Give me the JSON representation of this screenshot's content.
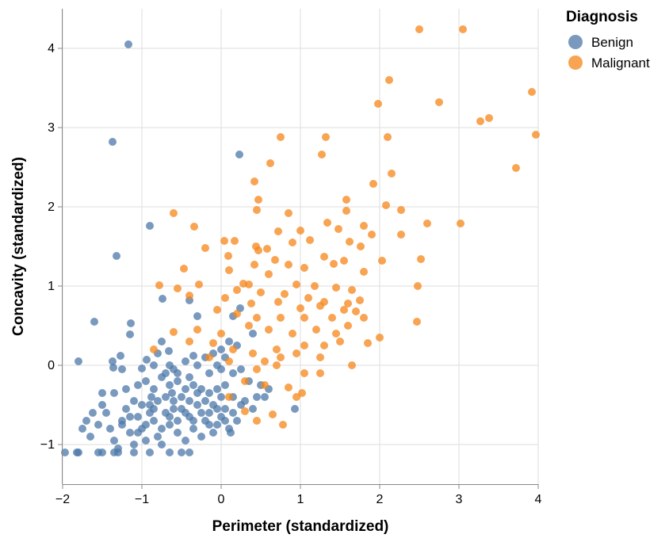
{
  "chart_data": {
    "type": "scatter",
    "xlabel": "Perimeter (standardized)",
    "ylabel": "Concavity (standardized)",
    "xlim": [
      -2,
      4
    ],
    "ylim": [
      -1.5,
      4.5
    ],
    "xticks": [
      -2,
      -1,
      0,
      1,
      2,
      3,
      4
    ],
    "yticks": [
      -1,
      0,
      1,
      2,
      3,
      4
    ],
    "grid": true,
    "legend": {
      "title": "Diagnosis",
      "placement": "top-right"
    },
    "series": [
      {
        "name": "Benign",
        "color": "#4c78a8",
        "points": [
          [
            -1.17,
            4.05
          ],
          [
            -1.37,
            2.82
          ],
          [
            0.23,
            2.66
          ],
          [
            -0.9,
            1.76
          ],
          [
            -1.32,
            1.38
          ],
          [
            -0.74,
            0.84
          ],
          [
            -0.4,
            0.82
          ],
          [
            -1.6,
            0.55
          ],
          [
            -1.14,
            0.53
          ],
          [
            -1.15,
            0.39
          ],
          [
            -0.3,
            0.62
          ],
          [
            0.15,
            0.62
          ],
          [
            0.24,
            0.72
          ],
          [
            -1.8,
            0.05
          ],
          [
            -1.37,
            0.05
          ],
          [
            -1.27,
            0.12
          ],
          [
            -1.25,
            -0.05
          ],
          [
            -1.36,
            -0.03
          ],
          [
            -0.75,
            0.3
          ],
          [
            -0.66,
            0.18
          ],
          [
            -0.8,
            0.15
          ],
          [
            -0.94,
            0.07
          ],
          [
            -0.65,
            0.0
          ],
          [
            -0.6,
            -0.05
          ],
          [
            -0.45,
            0.05
          ],
          [
            -0.35,
            0.12
          ],
          [
            -0.2,
            0.1
          ],
          [
            -0.1,
            0.15
          ],
          [
            0.0,
            0.2
          ],
          [
            0.1,
            0.3
          ],
          [
            0.2,
            0.25
          ],
          [
            0.4,
            0.4
          ],
          [
            -1.0,
            -0.04
          ],
          [
            -0.85,
            0.0
          ],
          [
            -0.7,
            -0.1
          ],
          [
            -0.55,
            -0.1
          ],
          [
            -0.4,
            -0.15
          ],
          [
            -0.3,
            0.0
          ],
          [
            -0.15,
            -0.1
          ],
          [
            0.0,
            -0.05
          ],
          [
            0.15,
            -0.1
          ],
          [
            0.25,
            -0.05
          ],
          [
            0.05,
            0.1
          ],
          [
            -0.05,
            0.0
          ],
          [
            0.35,
            -0.2
          ],
          [
            0.5,
            -0.25
          ],
          [
            0.6,
            -0.3
          ],
          [
            0.45,
            -0.4
          ],
          [
            0.55,
            -0.4
          ],
          [
            0.93,
            -0.55
          ],
          [
            -1.8,
            -1.1
          ],
          [
            -1.82,
            -1.1
          ],
          [
            -1.97,
            -1.1
          ],
          [
            -1.55,
            -1.1
          ],
          [
            -1.5,
            -1.1
          ],
          [
            -1.35,
            -1.1
          ],
          [
            -1.3,
            -1.1
          ],
          [
            -1.1,
            -1.1
          ],
          [
            -0.9,
            -1.1
          ],
          [
            -0.65,
            -1.1
          ],
          [
            -0.5,
            -1.1
          ],
          [
            -0.4,
            -1.1
          ],
          [
            -1.65,
            -0.9
          ],
          [
            -1.55,
            -0.75
          ],
          [
            -1.5,
            -0.5
          ],
          [
            -1.45,
            -0.6
          ],
          [
            -1.4,
            -0.8
          ],
          [
            -1.35,
            -0.95
          ],
          [
            -1.3,
            -1.05
          ],
          [
            -1.25,
            -0.7
          ],
          [
            -1.2,
            -0.55
          ],
          [
            -1.15,
            -0.85
          ],
          [
            -1.1,
            -1.0
          ],
          [
            -1.05,
            -0.65
          ],
          [
            -1.0,
            -0.8
          ],
          [
            -0.95,
            -0.95
          ],
          [
            -0.9,
            -0.5
          ],
          [
            -0.85,
            -0.7
          ],
          [
            -0.8,
            -0.9
          ],
          [
            -0.75,
            -1.0
          ],
          [
            -0.7,
            -0.6
          ],
          [
            -0.65,
            -0.75
          ],
          [
            -0.6,
            -0.45
          ],
          [
            -0.55,
            -0.85
          ],
          [
            -0.5,
            -0.55
          ],
          [
            -0.45,
            -0.95
          ],
          [
            -0.4,
            -0.65
          ],
          [
            -0.35,
            -0.8
          ],
          [
            -0.3,
            -0.5
          ],
          [
            -0.25,
            -0.9
          ],
          [
            -0.2,
            -0.7
          ],
          [
            -0.15,
            -0.6
          ],
          [
            -0.1,
            -0.85
          ],
          [
            -0.05,
            -0.75
          ],
          [
            0.0,
            -0.65
          ],
          [
            0.05,
            -0.55
          ],
          [
            0.1,
            -0.8
          ],
          [
            0.15,
            -0.6
          ],
          [
            0.2,
            -0.7
          ],
          [
            0.25,
            -0.5
          ],
          [
            -1.5,
            -0.35
          ],
          [
            -1.35,
            -0.35
          ],
          [
            -1.2,
            -0.3
          ],
          [
            -1.05,
            -0.25
          ],
          [
            -0.95,
            -0.2
          ],
          [
            -0.85,
            -0.3
          ],
          [
            -0.75,
            -0.15
          ],
          [
            -0.65,
            -0.25
          ],
          [
            -0.55,
            -0.2
          ],
          [
            -0.45,
            -0.3
          ],
          [
            -0.35,
            -0.25
          ],
          [
            -0.25,
            -0.3
          ],
          [
            -0.15,
            -0.35
          ],
          [
            -0.05,
            -0.3
          ],
          [
            0.05,
            -0.25
          ],
          [
            0.15,
            -0.4
          ],
          [
            0.3,
            -0.45
          ],
          [
            0.4,
            -0.55
          ],
          [
            -1.1,
            -0.45
          ],
          [
            -1.0,
            -0.5
          ],
          [
            -0.9,
            -0.6
          ],
          [
            -0.8,
            -0.45
          ],
          [
            -0.7,
            -0.4
          ],
          [
            -0.6,
            -0.55
          ],
          [
            -0.5,
            -0.4
          ],
          [
            -0.4,
            -0.45
          ],
          [
            -0.3,
            -0.35
          ],
          [
            -0.2,
            -0.45
          ],
          [
            -0.1,
            -0.5
          ],
          [
            0.0,
            -0.4
          ],
          [
            -1.25,
            -0.75
          ],
          [
            -1.15,
            -0.65
          ],
          [
            -1.05,
            -0.85
          ],
          [
            -0.95,
            -0.75
          ],
          [
            -0.85,
            -0.55
          ],
          [
            -0.75,
            -0.8
          ],
          [
            -0.65,
            -0.65
          ],
          [
            -0.55,
            -0.7
          ],
          [
            -0.45,
            -0.6
          ],
          [
            -0.35,
            -0.7
          ],
          [
            -0.25,
            -0.6
          ],
          [
            -0.15,
            -0.75
          ],
          [
            -0.05,
            -0.55
          ],
          [
            0.05,
            -0.7
          ],
          [
            0.12,
            -0.85
          ],
          [
            -1.7,
            -0.7
          ],
          [
            -1.62,
            -0.6
          ],
          [
            -1.75,
            -0.8
          ],
          [
            -0.88,
            -0.4
          ],
          [
            -0.62,
            -0.35
          ]
        ]
      },
      {
        "name": "Malignant",
        "color": "#f58518",
        "points": [
          [
            2.5,
            4.24
          ],
          [
            3.05,
            4.24
          ],
          [
            2.12,
            3.6
          ],
          [
            1.98,
            3.3
          ],
          [
            2.75,
            3.32
          ],
          [
            3.92,
            3.45
          ],
          [
            3.38,
            3.12
          ],
          [
            3.27,
            3.08
          ],
          [
            3.97,
            2.91
          ],
          [
            3.72,
            2.49
          ],
          [
            0.75,
            2.88
          ],
          [
            1.32,
            2.88
          ],
          [
            2.1,
            2.88
          ],
          [
            1.27,
            2.66
          ],
          [
            0.62,
            2.55
          ],
          [
            2.15,
            2.42
          ],
          [
            0.42,
            2.32
          ],
          [
            1.92,
            2.29
          ],
          [
            1.58,
            2.09
          ],
          [
            0.47,
            2.09
          ],
          [
            1.58,
            1.95
          ],
          [
            0.45,
            1.96
          ],
          [
            2.08,
            2.02
          ],
          [
            2.27,
            1.96
          ],
          [
            -0.6,
            1.92
          ],
          [
            0.85,
            1.92
          ],
          [
            1.34,
            1.8
          ],
          [
            1.8,
            1.76
          ],
          [
            2.6,
            1.79
          ],
          [
            3.02,
            1.79
          ],
          [
            -0.34,
            1.75
          ],
          [
            1.0,
            1.7
          ],
          [
            1.48,
            1.72
          ],
          [
            1.9,
            1.65
          ],
          [
            0.04,
            1.57
          ],
          [
            0.17,
            1.57
          ],
          [
            0.72,
            1.69
          ],
          [
            2.27,
            1.65
          ],
          [
            0.44,
            1.5
          ],
          [
            0.58,
            1.47
          ],
          [
            1.12,
            1.58
          ],
          [
            1.62,
            1.56
          ],
          [
            1.76,
            1.5
          ],
          [
            0.47,
            1.45
          ],
          [
            -0.2,
            1.48
          ],
          [
            0.9,
            1.55
          ],
          [
            2.03,
            1.32
          ],
          [
            2.52,
            1.34
          ],
          [
            0.09,
            1.38
          ],
          [
            0.42,
            1.27
          ],
          [
            0.68,
            1.33
          ],
          [
            1.3,
            1.37
          ],
          [
            1.55,
            1.32
          ],
          [
            0.85,
            1.27
          ],
          [
            -0.47,
            1.22
          ],
          [
            0.1,
            1.2
          ],
          [
            1.05,
            1.23
          ],
          [
            1.42,
            1.28
          ],
          [
            1.8,
            1.18
          ],
          [
            0.6,
            1.15
          ],
          [
            0.28,
            1.03
          ],
          [
            0.35,
            1.02
          ],
          [
            0.95,
            1.02
          ],
          [
            1.18,
            1.0
          ],
          [
            1.45,
            0.98
          ],
          [
            1.65,
            0.95
          ],
          [
            -0.78,
            1.01
          ],
          [
            -0.55,
            0.97
          ],
          [
            -0.28,
            1.02
          ],
          [
            0.2,
            0.95
          ],
          [
            0.5,
            0.92
          ],
          [
            0.8,
            0.9
          ],
          [
            1.1,
            0.85
          ],
          [
            1.3,
            0.8
          ],
          [
            1.6,
            0.78
          ],
          [
            1.75,
            0.82
          ],
          [
            2.48,
            1.0
          ],
          [
            -0.4,
            0.88
          ],
          [
            0.05,
            0.85
          ],
          [
            0.38,
            0.78
          ],
          [
            0.72,
            0.8
          ],
          [
            1.0,
            0.72
          ],
          [
            1.25,
            0.75
          ],
          [
            1.55,
            0.7
          ],
          [
            1.7,
            0.68
          ],
          [
            -0.05,
            0.7
          ],
          [
            0.2,
            0.65
          ],
          [
            0.45,
            0.6
          ],
          [
            0.75,
            0.6
          ],
          [
            1.05,
            0.6
          ],
          [
            1.4,
            0.6
          ],
          [
            1.8,
            0.6
          ],
          [
            2.47,
            0.55
          ],
          [
            -0.6,
            0.42
          ],
          [
            -0.3,
            0.45
          ],
          [
            0.0,
            0.4
          ],
          [
            0.35,
            0.5
          ],
          [
            0.6,
            0.45
          ],
          [
            0.9,
            0.4
          ],
          [
            1.2,
            0.45
          ],
          [
            1.45,
            0.4
          ],
          [
            1.6,
            0.5
          ],
          [
            2.0,
            0.35
          ],
          [
            -0.85,
            0.2
          ],
          [
            -0.4,
            0.3
          ],
          [
            -0.1,
            0.28
          ],
          [
            0.15,
            0.2
          ],
          [
            0.4,
            0.15
          ],
          [
            0.7,
            0.2
          ],
          [
            1.05,
            0.25
          ],
          [
            1.3,
            0.25
          ],
          [
            1.5,
            0.3
          ],
          [
            1.85,
            0.28
          ],
          [
            -0.15,
            0.1
          ],
          [
            0.1,
            0.05
          ],
          [
            0.55,
            0.05
          ],
          [
            0.75,
            0.1
          ],
          [
            0.95,
            0.15
          ],
          [
            1.25,
            0.1
          ],
          [
            1.65,
            0.0
          ],
          [
            0.45,
            -0.05
          ],
          [
            0.7,
            0.0
          ],
          [
            1.05,
            -0.1
          ],
          [
            1.25,
            -0.1
          ],
          [
            0.3,
            -0.2
          ],
          [
            0.55,
            -0.25
          ],
          [
            0.85,
            -0.28
          ],
          [
            0.95,
            -0.4
          ],
          [
            0.1,
            -0.4
          ],
          [
            0.3,
            -0.58
          ],
          [
            0.45,
            -0.7
          ],
          [
            0.65,
            -0.62
          ],
          [
            0.78,
            -0.75
          ],
          [
            1.02,
            -0.35
          ]
        ]
      }
    ]
  }
}
